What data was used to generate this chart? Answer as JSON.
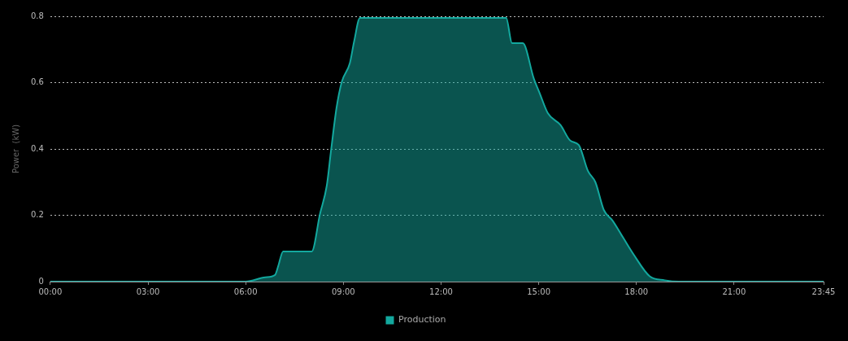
{
  "chart_data": {
    "type": "area",
    "ylabel": "Power  (kW)",
    "legend": "bottom",
    "grid": "y",
    "marker": "none",
    "line_style": "solid",
    "xlim": [
      0,
      23.75
    ],
    "xticks": [
      {
        "value": 0,
        "label": "00:00"
      },
      {
        "value": 3,
        "label": "03:00"
      },
      {
        "value": 6,
        "label": "06:00"
      },
      {
        "value": 9,
        "label": "09:00"
      },
      {
        "value": 12,
        "label": "12:00"
      },
      {
        "value": 15,
        "label": "15:00"
      },
      {
        "value": 18,
        "label": "18:00"
      },
      {
        "value": 21,
        "label": "21:00"
      },
      {
        "value": 23.75,
        "label": "23:45"
      }
    ],
    "ylim": [
      0,
      0.8
    ],
    "yticks": [
      0,
      0.2,
      0.4,
      0.6,
      0.8
    ],
    "series": [
      {
        "name": "Production",
        "color": "#13a89e",
        "x": [
          0,
          6.0,
          6.6,
          6.9,
          7.0,
          7.15,
          8.03,
          8.28,
          8.49,
          8.62,
          8.79,
          8.95,
          9.2,
          9.33,
          9.51,
          14.0,
          14.18,
          14.51,
          14.85,
          15.03,
          15.28,
          15.67,
          15.97,
          16.23,
          16.51,
          16.74,
          17.0,
          17.26,
          17.59,
          17.92,
          18.41,
          18.87,
          19.3,
          23.75
        ],
        "values": [
          0,
          0,
          0.013,
          0.02,
          0.047,
          0.091,
          0.091,
          0.203,
          0.289,
          0.394,
          0.524,
          0.602,
          0.659,
          0.724,
          0.795,
          0.795,
          0.719,
          0.719,
          0.612,
          0.568,
          0.508,
          0.472,
          0.425,
          0.412,
          0.334,
          0.3,
          0.216,
          0.185,
          0.133,
          0.081,
          0.016,
          0.004,
          0,
          0
        ]
      }
    ]
  }
}
